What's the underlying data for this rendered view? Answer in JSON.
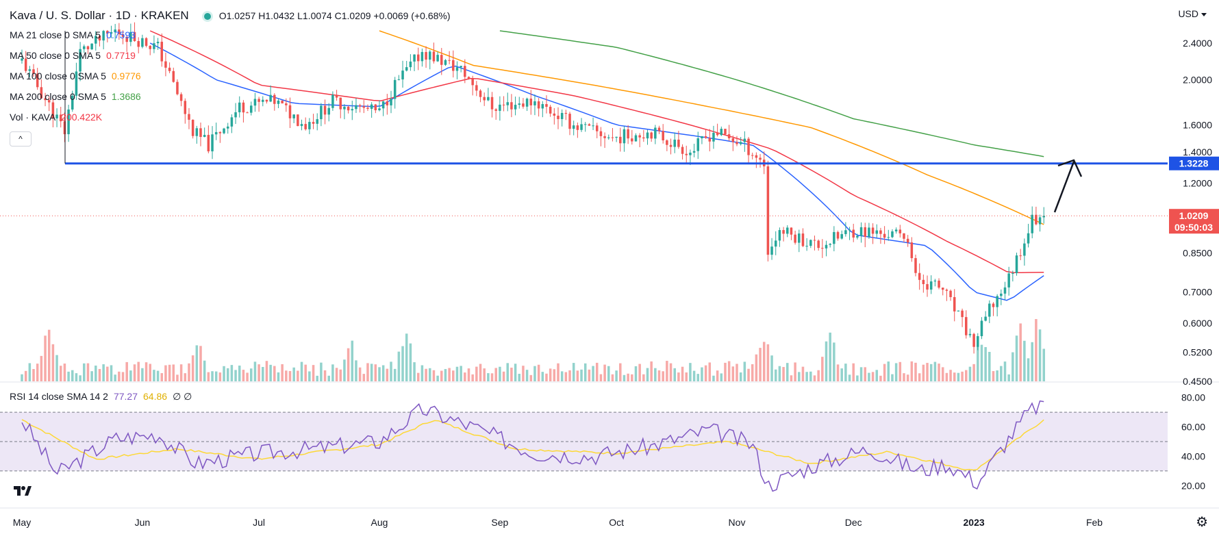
{
  "header": {
    "symbol": "Kava / U. S. Dollar · 1D · KRAKEN",
    "ohlc": "O1.0257  H1.0432  L1.0074  C1.0209  +0.0069 (+0.68%)"
  },
  "indicators": [
    {
      "label": "MA 21 close 0 SMA 5",
      "value": "0.7593",
      "color": "#2962ff"
    },
    {
      "label": "MA 50 close 0 SMA 5",
      "value": "0.7719",
      "color": "#f23645"
    },
    {
      "label": "MA 100 close 0 SMA 5",
      "value": "0.9776",
      "color": "#ff9800"
    },
    {
      "label": "MA 200 close 0 SMA 5",
      "value": "1.3686",
      "color": "#43a047"
    },
    {
      "label": "Vol · KAVA",
      "value": "200.422K",
      "color": "#f23645"
    }
  ],
  "rsi_legend": {
    "label": "RSI 14 close SMA 14 2",
    "rsi": "77.27",
    "sma": "64.86",
    "extra": "∅ ∅"
  },
  "currency": "USD",
  "colors": {
    "up": "#26a69a",
    "down": "#ef5350",
    "ma21": "#2962ff",
    "ma50": "#f23645",
    "ma100": "#ff9800",
    "ma200": "#43a047",
    "hline": "#1e53e5",
    "rsi": "#7e57c2",
    "rsi_sma": "#fdd835",
    "rsi_band": "#ede7f6"
  },
  "icons": {
    "collapse": "chevron-up-icon",
    "logo": "tradingview-logo-icon",
    "settings": "gear-icon"
  },
  "chart_data": {
    "type": "candlestick",
    "x_labels": [
      "May",
      "Jun",
      "Jul",
      "Aug",
      "Sep",
      "Oct",
      "Nov",
      "Dec",
      "2023",
      "Feb"
    ],
    "price_axis_ticks": [
      "2.4000",
      "2.0000",
      "1.6000",
      "1.4000",
      "1.2000",
      "0.8500",
      "0.7000",
      "0.6000",
      "0.5200",
      "0.4500"
    ],
    "price_range": [
      0.45,
      2.55
    ],
    "log_scale": true,
    "horizontal_line": {
      "value": 1.3228,
      "label": "1.3228"
    },
    "last_price": {
      "value": 1.0209,
      "label": "1.0209",
      "countdown": "09:50:03"
    },
    "price_path": [
      {
        "date": "2022-05-01",
        "close": 2.2
      },
      {
        "date": "2022-05-12",
        "close": 1.55
      },
      {
        "date": "2022-05-16",
        "close": 2.3
      },
      {
        "date": "2022-05-25",
        "close": 2.55
      },
      {
        "date": "2022-06-05",
        "close": 2.35
      },
      {
        "date": "2022-06-14",
        "close": 1.55
      },
      {
        "date": "2022-06-18",
        "close": 1.45
      },
      {
        "date": "2022-06-26",
        "close": 1.75
      },
      {
        "date": "2022-07-05",
        "close": 1.8
      },
      {
        "date": "2022-07-13",
        "close": 1.6
      },
      {
        "date": "2022-07-20",
        "close": 1.8
      },
      {
        "date": "2022-08-01",
        "close": 1.7
      },
      {
        "date": "2022-08-05",
        "close": 1.95
      },
      {
        "date": "2022-08-12",
        "close": 2.3
      },
      {
        "date": "2022-08-22",
        "close": 2.1
      },
      {
        "date": "2022-08-30",
        "close": 1.75
      },
      {
        "date": "2022-09-10",
        "close": 1.8
      },
      {
        "date": "2022-09-20",
        "close": 1.6
      },
      {
        "date": "2022-09-30",
        "close": 1.5
      },
      {
        "date": "2022-10-10",
        "close": 1.55
      },
      {
        "date": "2022-10-20",
        "close": 1.4
      },
      {
        "date": "2022-10-26",
        "close": 1.55
      },
      {
        "date": "2022-11-03",
        "close": 1.45
      },
      {
        "date": "2022-11-08",
        "close": 1.32
      },
      {
        "date": "2022-11-09",
        "close": 0.85
      },
      {
        "date": "2022-11-12",
        "close": 0.95
      },
      {
        "date": "2022-11-22",
        "close": 0.88
      },
      {
        "date": "2022-12-01",
        "close": 0.95
      },
      {
        "date": "2022-12-15",
        "close": 0.92
      },
      {
        "date": "2022-12-17",
        "close": 0.75
      },
      {
        "date": "2022-12-24",
        "close": 0.71
      },
      {
        "date": "2023-01-01",
        "close": 0.54
      },
      {
        "date": "2023-01-05",
        "close": 0.64
      },
      {
        "date": "2023-01-10",
        "close": 0.75
      },
      {
        "date": "2023-01-16",
        "close": 1.0
      },
      {
        "date": "2023-01-19",
        "close": 1.02
      }
    ],
    "moving_averages": [
      {
        "name": "MA 21",
        "points": [
          {
            "date": "2022-06-03",
            "value": 2.4
          },
          {
            "date": "2022-06-20",
            "value": 2.0
          },
          {
            "date": "2022-07-10",
            "value": 1.78
          },
          {
            "date": "2022-08-01",
            "value": 1.75
          },
          {
            "date": "2022-08-20",
            "value": 2.15
          },
          {
            "date": "2022-09-10",
            "value": 1.85
          },
          {
            "date": "2022-10-01",
            "value": 1.6
          },
          {
            "date": "2022-10-25",
            "value": 1.5
          },
          {
            "date": "2022-11-05",
            "value": 1.45
          },
          {
            "date": "2022-11-20",
            "value": 1.15
          },
          {
            "date": "2022-12-01",
            "value": 0.93
          },
          {
            "date": "2022-12-20",
            "value": 0.88
          },
          {
            "date": "2023-01-01",
            "value": 0.7
          },
          {
            "date": "2023-01-10",
            "value": 0.67
          },
          {
            "date": "2023-01-19",
            "value": 0.7593
          }
        ]
      },
      {
        "name": "MA 50",
        "points": [
          {
            "date": "2022-06-03",
            "value": 2.55
          },
          {
            "date": "2022-07-01",
            "value": 1.95
          },
          {
            "date": "2022-08-01",
            "value": 1.8
          },
          {
            "date": "2022-08-25",
            "value": 2.02
          },
          {
            "date": "2022-09-20",
            "value": 1.85
          },
          {
            "date": "2022-10-20",
            "value": 1.6
          },
          {
            "date": "2022-11-10",
            "value": 1.42
          },
          {
            "date": "2022-12-01",
            "value": 1.13
          },
          {
            "date": "2022-12-25",
            "value": 0.9
          },
          {
            "date": "2023-01-10",
            "value": 0.77
          },
          {
            "date": "2023-01-19",
            "value": 0.7719
          }
        ]
      },
      {
        "name": "MA 100",
        "points": [
          {
            "date": "2022-08-01",
            "value": 2.55
          },
          {
            "date": "2022-08-25",
            "value": 2.15
          },
          {
            "date": "2022-09-25",
            "value": 1.95
          },
          {
            "date": "2022-10-25",
            "value": 1.75
          },
          {
            "date": "2022-11-20",
            "value": 1.58
          },
          {
            "date": "2022-12-20",
            "value": 1.25
          },
          {
            "date": "2023-01-19",
            "value": 0.9776
          }
        ]
      },
      {
        "name": "MA 200",
        "points": [
          {
            "date": "2022-09-01",
            "value": 2.55
          },
          {
            "date": "2022-10-01",
            "value": 2.35
          },
          {
            "date": "2022-11-01",
            "value": 2.0
          },
          {
            "date": "2022-12-01",
            "value": 1.65
          },
          {
            "date": "2023-01-01",
            "value": 1.45
          },
          {
            "date": "2023-01-19",
            "value": 1.3686
          }
        ]
      }
    ],
    "volume": {
      "spikes": [
        {
          "date": "2022-05-08",
          "level": 0.95
        },
        {
          "date": "2022-06-15",
          "level": 0.6
        },
        {
          "date": "2022-07-25",
          "level": 0.45
        },
        {
          "date": "2022-08-08",
          "level": 0.65
        },
        {
          "date": "2022-11-08",
          "level": 0.62
        },
        {
          "date": "2022-11-25",
          "level": 0.62
        },
        {
          "date": "2023-01-03",
          "level": 0.62
        },
        {
          "date": "2023-01-13",
          "level": 0.95
        },
        {
          "date": "2023-01-17",
          "level": 1.0
        }
      ]
    },
    "rsi": {
      "levels": [
        30,
        50,
        70
      ],
      "axis_ticks": [
        "80.00",
        "60.00",
        "40.00",
        "20.00"
      ],
      "range": [
        15,
        85
      ],
      "path": [
        {
          "date": "2022-05-01",
          "value": 65
        },
        {
          "date": "2022-05-10",
          "value": 28
        },
        {
          "date": "2022-05-25",
          "value": 52
        },
        {
          "date": "2022-06-05",
          "value": 55
        },
        {
          "date": "2022-06-15",
          "value": 35
        },
        {
          "date": "2022-07-01",
          "value": 42
        },
        {
          "date": "2022-07-15",
          "value": 45
        },
        {
          "date": "2022-08-01",
          "value": 50
        },
        {
          "date": "2022-08-12",
          "value": 72
        },
        {
          "date": "2022-08-25",
          "value": 60
        },
        {
          "date": "2022-09-10",
          "value": 42
        },
        {
          "date": "2022-09-25",
          "value": 40
        },
        {
          "date": "2022-10-10",
          "value": 47
        },
        {
          "date": "2022-10-25",
          "value": 58
        },
        {
          "date": "2022-11-05",
          "value": 48
        },
        {
          "date": "2022-11-09",
          "value": 20
        },
        {
          "date": "2022-11-20",
          "value": 33
        },
        {
          "date": "2022-12-05",
          "value": 45
        },
        {
          "date": "2022-12-18",
          "value": 30
        },
        {
          "date": "2022-12-25",
          "value": 35
        },
        {
          "date": "2023-01-02",
          "value": 22
        },
        {
          "date": "2023-01-08",
          "value": 45
        },
        {
          "date": "2023-01-15",
          "value": 70
        },
        {
          "date": "2023-01-19",
          "value": 77.27
        }
      ],
      "sma_path": [
        {
          "date": "2022-05-01",
          "value": 65
        },
        {
          "date": "2022-05-20",
          "value": 38
        },
        {
          "date": "2022-06-10",
          "value": 45
        },
        {
          "date": "2022-07-01",
          "value": 38
        },
        {
          "date": "2022-08-01",
          "value": 48
        },
        {
          "date": "2022-08-15",
          "value": 65
        },
        {
          "date": "2022-09-05",
          "value": 45
        },
        {
          "date": "2022-10-01",
          "value": 42
        },
        {
          "date": "2022-10-30",
          "value": 50
        },
        {
          "date": "2022-11-20",
          "value": 35
        },
        {
          "date": "2022-12-10",
          "value": 43
        },
        {
          "date": "2023-01-01",
          "value": 30
        },
        {
          "date": "2023-01-19",
          "value": 64.86
        }
      ]
    }
  }
}
